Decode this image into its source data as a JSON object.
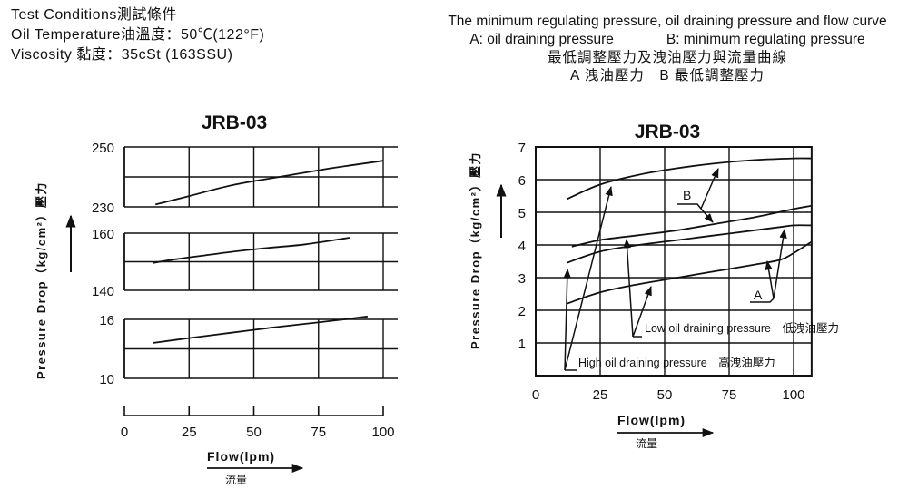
{
  "test_conditions": {
    "line1": "Test Conditions測試條件",
    "line2": "Oil Temperature油溫度：50℃(122°F)",
    "line3": "Viscosity 黏度：35cSt (163SSU)"
  },
  "right_title": {
    "line1": "The minimum regulating pressure, oil draining pressure and flow curve",
    "a_label": "A: oil draining pressure",
    "b_label": "B: minimum regulating pressure",
    "line3": "最低調整壓力及洩油壓力與流量曲線",
    "line4": "A 洩油壓力　B 最低調整壓力"
  },
  "chart_data": [
    {
      "type": "line",
      "title": "JRB-03",
      "xlabel": "Flow(lpm)",
      "xlabel_cjk": "流量",
      "ylabel": "Pressure Drop（kg/cm²）壓力",
      "xlim": [
        0,
        100
      ],
      "xticks": [
        "0",
        "25",
        "50",
        "75",
        "100"
      ],
      "grid": true,
      "panels": [
        {
          "ylim": [
            230,
            250
          ],
          "yticks": [
            "250",
            "230"
          ],
          "x": [
            12,
            25,
            42,
            60,
            80,
            100
          ],
          "y": [
            230.8,
            233.6,
            237.3,
            240.0,
            242.9,
            245.4
          ]
        },
        {
          "ylim": [
            140,
            160
          ],
          "yticks": [
            "160",
            "140"
          ],
          "x": [
            11,
            20,
            30,
            40,
            55,
            70,
            87
          ],
          "y": [
            149.6,
            150.9,
            152.1,
            153.3,
            154.8,
            156.1,
            158.4
          ]
        },
        {
          "ylim": [
            10,
            16
          ],
          "yticks": [
            "16",
            "10"
          ],
          "x": [
            11,
            25,
            40,
            55,
            70,
            85,
            94
          ],
          "y": [
            13.6,
            14.1,
            14.6,
            15.1,
            15.55,
            16.0,
            16.3
          ]
        }
      ]
    },
    {
      "type": "line",
      "title": "JRB-03",
      "xlabel": "Flow(lpm)",
      "xlabel_cjk": "流量",
      "ylabel": "Pressure Drop（kg/cm²）壓力",
      "xlim": [
        0,
        107
      ],
      "ylim": [
        0,
        7
      ],
      "xticks": [
        0,
        25,
        50,
        75,
        100
      ],
      "yticks": [
        1,
        2,
        3,
        4,
        5,
        6,
        7
      ],
      "grid": true,
      "series": [
        {
          "x": [
            12,
            25,
            40,
            55,
            70,
            85,
            100,
            107
          ],
          "y": [
            5.4,
            5.85,
            6.15,
            6.35,
            6.5,
            6.6,
            6.65,
            6.65
          ]
        },
        {
          "x": [
            14,
            25,
            40,
            55,
            70,
            85,
            100,
            107
          ],
          "y": [
            3.95,
            4.15,
            4.3,
            4.45,
            4.65,
            4.85,
            5.1,
            5.2
          ]
        },
        {
          "x": [
            12,
            25,
            40,
            55,
            70,
            85,
            95,
            100,
            107
          ],
          "y": [
            3.45,
            3.8,
            4.0,
            4.15,
            4.3,
            4.45,
            4.55,
            4.6,
            4.6
          ]
        },
        {
          "x": [
            12,
            25,
            40,
            55,
            70,
            85,
            95,
            100,
            107
          ],
          "y": [
            2.2,
            2.55,
            2.8,
            3.0,
            3.2,
            3.4,
            3.55,
            3.75,
            4.1
          ]
        }
      ],
      "annotations": {
        "a_marker": "A",
        "b_marker": "B",
        "low_label": "Low oil draining pressure　低洩油壓力",
        "high_label": "High oil draining pressure　高洩油壓力"
      }
    }
  ]
}
